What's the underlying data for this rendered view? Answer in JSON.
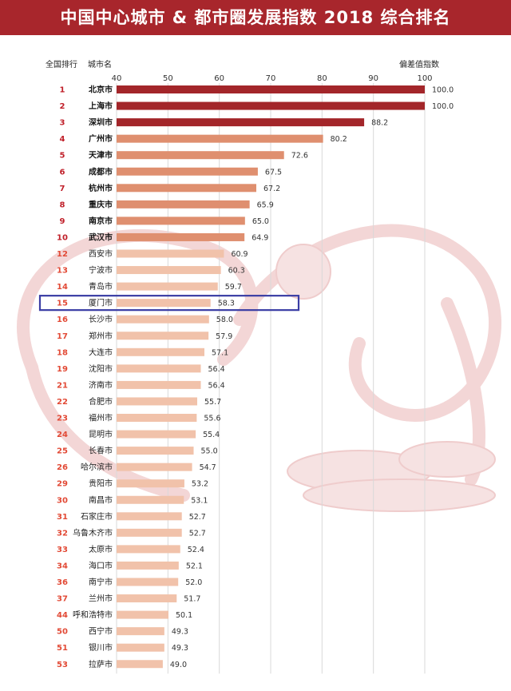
{
  "title": "中国中心城市 & 都市圈发展指数 2018 综合排名",
  "headers": {
    "rank": "全国排行",
    "city": "城市名",
    "value": "偏差值指数"
  },
  "colors": {
    "title_bg": "#a8262c",
    "tier1": "#a3262a",
    "tier2": "#df8f6f",
    "tier3": "#f1c2aa",
    "rank_top": "#c0202a",
    "rank_other": "#e24a36",
    "highlight_box": "#3b3ea5",
    "watermark": "#f3dcdc"
  },
  "chart_data": {
    "type": "bar",
    "orientation": "horizontal",
    "xlim": [
      40,
      100
    ],
    "xticks": [
      "40",
      "50",
      "60",
      "70",
      "80",
      "90",
      "100"
    ],
    "grid": true,
    "highlighted_city": "厦门市",
    "rows": [
      {
        "rank": "1",
        "city": "北京市",
        "value": 100.0,
        "label": "100.0",
        "tier": 1
      },
      {
        "rank": "2",
        "city": "上海市",
        "value": 100.0,
        "label": "100.0",
        "tier": 1
      },
      {
        "rank": "3",
        "city": "深圳市",
        "value": 88.2,
        "label": "88.2",
        "tier": 1
      },
      {
        "rank": "4",
        "city": "广州市",
        "value": 80.2,
        "label": "80.2",
        "tier": 2
      },
      {
        "rank": "5",
        "city": "天津市",
        "value": 72.6,
        "label": "72.6",
        "tier": 2
      },
      {
        "rank": "6",
        "city": "成都市",
        "value": 67.5,
        "label": "67.5",
        "tier": 2
      },
      {
        "rank": "7",
        "city": "杭州市",
        "value": 67.2,
        "label": "67.2",
        "tier": 2
      },
      {
        "rank": "8",
        "city": "重庆市",
        "value": 65.9,
        "label": "65.9",
        "tier": 2
      },
      {
        "rank": "9",
        "city": "南京市",
        "value": 65.0,
        "label": "65.0",
        "tier": 2
      },
      {
        "rank": "10",
        "city": "武汉市",
        "value": 64.9,
        "label": "64.9",
        "tier": 2
      },
      {
        "rank": "12",
        "city": "西安市",
        "value": 60.9,
        "label": "60.9",
        "tier": 3
      },
      {
        "rank": "13",
        "city": "宁波市",
        "value": 60.3,
        "label": "60.3",
        "tier": 3
      },
      {
        "rank": "14",
        "city": "青岛市",
        "value": 59.7,
        "label": "59.7",
        "tier": 3
      },
      {
        "rank": "15",
        "city": "厦门市",
        "value": 58.3,
        "label": "58.3",
        "tier": 3
      },
      {
        "rank": "16",
        "city": "长沙市",
        "value": 58.0,
        "label": "58.0",
        "tier": 3
      },
      {
        "rank": "17",
        "city": "郑州市",
        "value": 57.9,
        "label": "57.9",
        "tier": 3
      },
      {
        "rank": "18",
        "city": "大连市",
        "value": 57.1,
        "label": "57.1",
        "tier": 3
      },
      {
        "rank": "19",
        "city": "沈阳市",
        "value": 56.4,
        "label": "56.4",
        "tier": 3
      },
      {
        "rank": "21",
        "city": "济南市",
        "value": 56.4,
        "label": "56.4",
        "tier": 3
      },
      {
        "rank": "22",
        "city": "合肥市",
        "value": 55.7,
        "label": "55.7",
        "tier": 3
      },
      {
        "rank": "23",
        "city": "福州市",
        "value": 55.6,
        "label": "55.6",
        "tier": 3
      },
      {
        "rank": "24",
        "city": "昆明市",
        "value": 55.4,
        "label": "55.4",
        "tier": 3
      },
      {
        "rank": "25",
        "city": "长春市",
        "value": 55.0,
        "label": "55.0",
        "tier": 3
      },
      {
        "rank": "26",
        "city": "哈尔滨市",
        "value": 54.7,
        "label": "54.7",
        "tier": 3
      },
      {
        "rank": "29",
        "city": "贵阳市",
        "value": 53.2,
        "label": "53.2",
        "tier": 3
      },
      {
        "rank": "30",
        "city": "南昌市",
        "value": 53.1,
        "label": "53.1",
        "tier": 3
      },
      {
        "rank": "31",
        "city": "石家庄市",
        "value": 52.7,
        "label": "52.7",
        "tier": 3
      },
      {
        "rank": "32",
        "city": "乌鲁木齐市",
        "value": 52.7,
        "label": "52.7",
        "tier": 3
      },
      {
        "rank": "33",
        "city": "太原市",
        "value": 52.4,
        "label": "52.4",
        "tier": 3
      },
      {
        "rank": "34",
        "city": "海口市",
        "value": 52.1,
        "label": "52.1",
        "tier": 3
      },
      {
        "rank": "36",
        "city": "南宁市",
        "value": 52.0,
        "label": "52.0",
        "tier": 3
      },
      {
        "rank": "37",
        "city": "兰州市",
        "value": 51.7,
        "label": "51.7",
        "tier": 3
      },
      {
        "rank": "44",
        "city": "呼和浩特市",
        "value": 50.1,
        "label": "50.1",
        "tier": 3
      },
      {
        "rank": "50",
        "city": "西宁市",
        "value": 49.3,
        "label": "49.3",
        "tier": 3
      },
      {
        "rank": "51",
        "city": "银川市",
        "value": 49.3,
        "label": "49.3",
        "tier": 3
      },
      {
        "rank": "53",
        "city": "拉萨市",
        "value": 49.0,
        "label": "49.0",
        "tier": 3
      }
    ]
  }
}
